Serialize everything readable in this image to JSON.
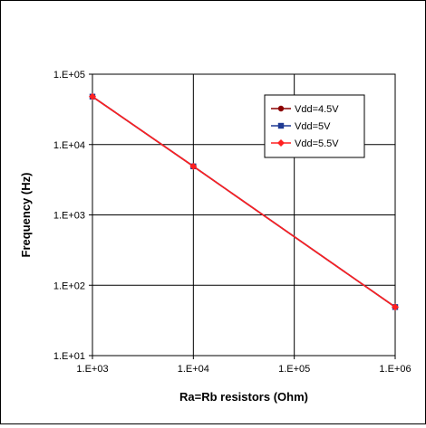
{
  "chart_data": {
    "type": "line",
    "xlabel": "Ra=Rb resistors (Ohm)",
    "ylabel": "Frequency (Hz)",
    "x_scale": "log",
    "y_scale": "log",
    "xlim": [
      1000,
      1000000
    ],
    "ylim": [
      10,
      100000
    ],
    "x_ticks": [
      1000,
      10000,
      100000,
      1000000
    ],
    "x_tick_labels": [
      "1.E+03",
      "1.E+04",
      "1.E+05",
      "1.E+06"
    ],
    "y_ticks": [
      10,
      100,
      1000,
      10000,
      100000
    ],
    "y_tick_labels": [
      "1.E+01",
      "1.E+02",
      "1.E+03",
      "1.E+04",
      "1.E+05"
    ],
    "grid": true,
    "legend_position": "top-right",
    "x": [
      1000,
      10000,
      1000000
    ],
    "series": [
      {
        "name": "Vdd=4.5V",
        "values": [
          48000,
          4900,
          49
        ],
        "color": "#8b0000",
        "marker": "circle"
      },
      {
        "name": "Vdd=5V",
        "values": [
          48000,
          4900,
          49
        ],
        "color": "#1f3a93",
        "marker": "square"
      },
      {
        "name": "Vdd=5.5V",
        "values": [
          48000,
          4900,
          49
        ],
        "color": "#ff2020",
        "marker": "diamond"
      }
    ]
  }
}
